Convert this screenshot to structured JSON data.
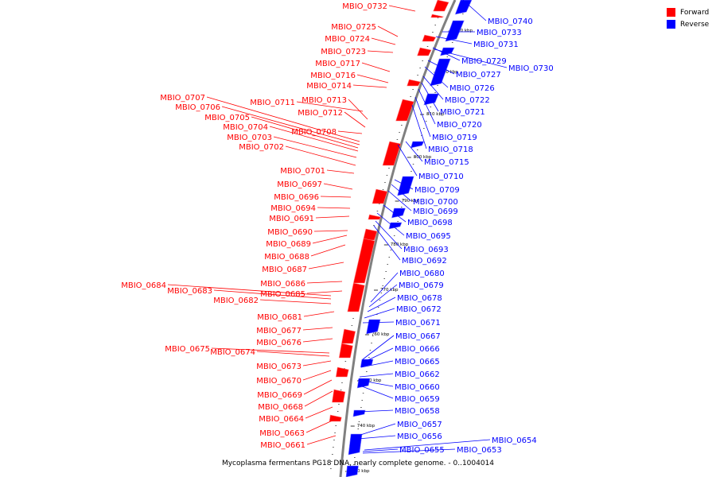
{
  "caption": "Mycoplasma fermentans PG18 DNA, nearly complete genome. - 0..1004014",
  "legend": [
    {
      "label": "Forward",
      "color": "#ff0000"
    },
    {
      "label": "Reverse",
      "color": "#0000ff"
    }
  ],
  "colors": {
    "forward": "#ff0000",
    "reverse": "#0000ff",
    "backbone": "#808080"
  },
  "scale_labels": [
    "830 kbp",
    "820 kbp",
    "810 kbp",
    "800 kbp",
    "790 kbp",
    "780 kbp",
    "770 kbp",
    "760 kbp",
    "750 kbp",
    "740 kbp",
    "730 kbp"
  ],
  "forward_labels": [
    "MBIO_0732",
    "MBIO_0725",
    "MBIO_0724",
    "MBIO_0723",
    "MBIO_0717",
    "MBIO_0716",
    "MBIO_0714",
    "MBIO_0707",
    "MBIO_0706",
    "MBIO_0711",
    "MBIO_0713",
    "MBIO_0712",
    "MBIO_0705",
    "MBIO_0704",
    "MBIO_0708",
    "MBIO_0703",
    "MBIO_0702",
    "MBIO_0701",
    "MBIO_0697",
    "MBIO_0696",
    "MBIO_0694",
    "MBIO_0691",
    "MBIO_0690",
    "MBIO_0689",
    "MBIO_0688",
    "MBIO_0687",
    "MBIO_0686",
    "MBIO_0684",
    "MBIO_0683",
    "MBIO_0685",
    "MBIO_0682",
    "MBIO_0681",
    "MBIO_0677",
    "MBIO_0676",
    "MBIO_0675",
    "MBIO_0674",
    "MBIO_0673",
    "MBIO_0670",
    "MBIO_0669",
    "MBIO_0668",
    "MBIO_0664",
    "MBIO_0663",
    "MBIO_0661"
  ],
  "reverse_labels": [
    "MBIO_0740",
    "MBIO_0733",
    "MBIO_0731",
    "MBIO_0729",
    "MBIO_0730",
    "MBIO_0727",
    "MBIO_0726",
    "MBIO_0722",
    "MBIO_0721",
    "MBIO_0720",
    "MBIO_0719",
    "MBIO_0718",
    "MBIO_0715",
    "MBIO_0710",
    "MBIO_0709",
    "MBIO_0700",
    "MBIO_0699",
    "MBIO_0698",
    "MBIO_0695",
    "MBIO_0693",
    "MBIO_0692",
    "MBIO_0680",
    "MBIO_0679",
    "MBIO_0678",
    "MBIO_0672",
    "MBIO_0671",
    "MBIO_0667",
    "MBIO_0666",
    "MBIO_0665",
    "MBIO_0662",
    "MBIO_0660",
    "MBIO_0659",
    "MBIO_0658",
    "MBIO_0657",
    "MBIO_0656",
    "MBIO_0654",
    "MBIO_0655",
    "MBIO_0653"
  ]
}
